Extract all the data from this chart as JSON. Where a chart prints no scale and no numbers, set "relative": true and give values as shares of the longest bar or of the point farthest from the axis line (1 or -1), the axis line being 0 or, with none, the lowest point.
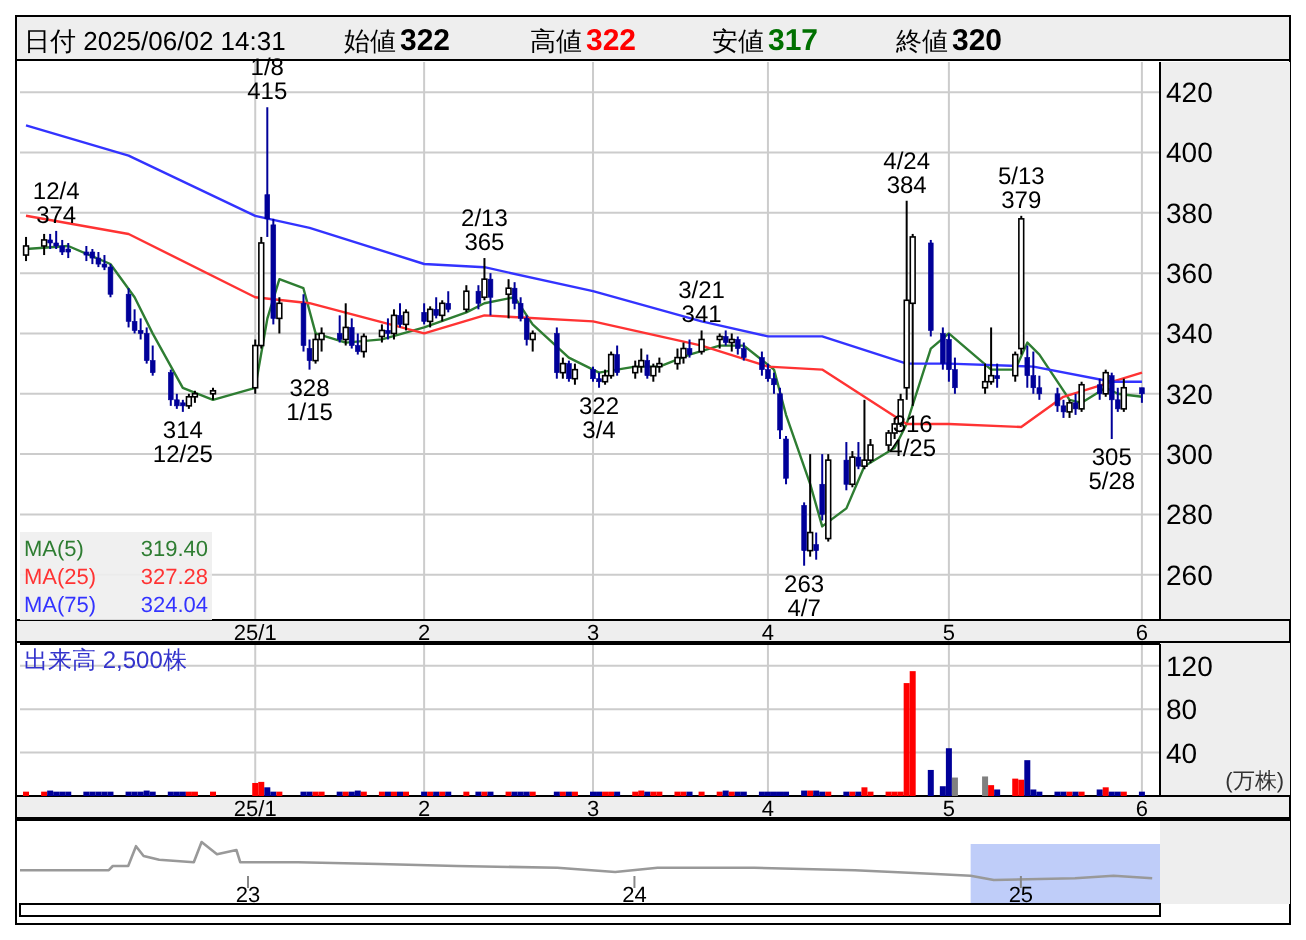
{
  "chart_data": [
    {
      "type": "other",
      "annotations": [
        "日付 2025/06/02 14:31",
        "始値",
        "322",
        "高値",
        "322",
        "安値",
        "317",
        "終値",
        "320"
      ],
      "colors": [
        "#000000",
        "#000000",
        "#000000",
        "#000000",
        "#ff0000",
        "#000000",
        "#007000",
        "#000000",
        "#000000"
      ]
    },
    {
      "type": "candlestick",
      "grid": true,
      "legend": "bottom left",
      "colors": [
        "#ffffff",
        "#ffffff",
        "#000099",
        "#000099",
        "#000099",
        "#000099",
        "#000099",
        "#000099",
        "#000099",
        "#000099",
        "#000099",
        "#000099",
        "#000099",
        "#000099",
        "#000099",
        "#000099",
        "#000099",
        "#000099",
        "#000099",
        "#ffffff",
        "#ffffff",
        "#ffffff",
        "#ffffff",
        "#ffffff",
        "#000099",
        "#000099",
        "#ffffff",
        "#000099",
        "#000099",
        "#ffffff",
        "#ffffff",
        "#000099",
        "#ffffff",
        "#000099",
        "#000099",
        "#ffffff",
        "#ffffff",
        "#000099",
        "#ffffff",
        "#000099",
        "#ffffff",
        "#000099",
        "#ffffff",
        "#000099",
        "#ffffff",
        "#000099",
        "#ffffff",
        "#000099",
        "#ffffff",
        "#000099",
        "#ffffff",
        "#000099",
        "#000099",
        "#000099",
        "#ffffff",
        "#000099",
        "#ffffff",
        "#000099",
        "#ffffff",
        "#000099",
        "#000099",
        "#ffffff",
        "#ffffff",
        "#000099",
        "#ffffff",
        "#ffffff",
        "#000099",
        "#ffffff",
        "#ffffff",
        "#ffffff",
        "#ffffff",
        "#000099",
        "#ffffff",
        "#ffffff",
        "#000099",
        "#ffffff",
        "#000099",
        "#000099",
        "#000099",
        "#000099",
        "#000099",
        "#000099",
        "#000099",
        "#000099",
        "#ffffff",
        "#000099",
        "#000099",
        "#ffffff",
        "#000099",
        "#ffffff",
        "#000099",
        "#ffffff",
        "#ffffff",
        "#ffffff",
        "#ffffff",
        "#ffffff",
        "#ffffff",
        "#ffffff",
        "#000099",
        "#000099",
        "#000099",
        "#000099",
        "#ffffff",
        "#ffffff",
        "#000099",
        "#ffffff",
        "#ffffff",
        "#000099",
        "#000099",
        "#000099",
        "#000099",
        "#000099",
        "#ffffff",
        "#000099",
        "#ffffff",
        "#000099",
        "#ffffff",
        "#000099",
        "#000099",
        "#ffffff",
        "#000099"
      ],
      "x": [
        "2024-11-29",
        "2024-12-02",
        "2024-12-03",
        "2024-12-04",
        "2024-12-05",
        "2024-12-06",
        "2024-12-09",
        "2024-12-10",
        "2024-12-11",
        "2024-12-12",
        "2024-12-13",
        "2024-12-16",
        "2024-12-17",
        "2024-12-18",
        "2024-12-19",
        "2024-12-20",
        "2024-12-23",
        "2024-12-24",
        "2024-12-25",
        "2024-12-26",
        "2024-12-27",
        "2024-12-30",
        "2025-01-06",
        "2025-01-07",
        "2025-01-08",
        "2025-01-09",
        "2025-01-10",
        "2025-01-14",
        "2025-01-15",
        "2025-01-16",
        "2025-01-17",
        "2025-01-20",
        "2025-01-21",
        "2025-01-22",
        "2025-01-23",
        "2025-01-24",
        "2025-01-27",
        "2025-01-28",
        "2025-01-29",
        "2025-01-30",
        "2025-01-31",
        "2025-02-03",
        "2025-02-04",
        "2025-02-05",
        "2025-02-06",
        "2025-02-07",
        "2025-02-10",
        "2025-02-12",
        "2025-02-13",
        "2025-02-14",
        "2025-02-17",
        "2025-02-18",
        "2025-02-19",
        "2025-02-20",
        "2025-02-21",
        "2025-02-25",
        "2025-02-26",
        "2025-02-27",
        "2025-02-28",
        "2025-03-03",
        "2025-03-04",
        "2025-03-05",
        "2025-03-06",
        "2025-03-07",
        "2025-03-10",
        "2025-03-11",
        "2025-03-12",
        "2025-03-13",
        "2025-03-14",
        "2025-03-17",
        "2025-03-18",
        "2025-03-19",
        "2025-03-21",
        "2025-03-24",
        "2025-03-25",
        "2025-03-26",
        "2025-03-27",
        "2025-03-28",
        "2025-03-31",
        "2025-04-01",
        "2025-04-02",
        "2025-04-03",
        "2025-04-04",
        "2025-04-07",
        "2025-04-08",
        "2025-04-09",
        "2025-04-10",
        "2025-04-11",
        "2025-04-14",
        "2025-04-15",
        "2025-04-16",
        "2025-04-17",
        "2025-04-18",
        "2025-04-21",
        "2025-04-22",
        "2025-04-23",
        "2025-04-24",
        "2025-04-25",
        "2025-04-28",
        "2025-04-30",
        "2025-05-01",
        "2025-05-02",
        "2025-05-07",
        "2025-05-08",
        "2025-05-09",
        "2025-05-12",
        "2025-05-13",
        "2025-05-14",
        "2025-05-15",
        "2025-05-16",
        "2025-05-19",
        "2025-05-20",
        "2025-05-21",
        "2025-05-22",
        "2025-05-23",
        "2025-05-26",
        "2025-05-27",
        "2025-05-28",
        "2025-05-29",
        "2025-05-30",
        "2025-06-02"
      ],
      "ohlc": [
        [
          366,
          372,
          364,
          369
        ],
        [
          369,
          373,
          366,
          371
        ],
        [
          371,
          373,
          368,
          370
        ],
        [
          370,
          374,
          368,
          369
        ],
        [
          369,
          371,
          366,
          367
        ],
        [
          368,
          370,
          365,
          367
        ],
        [
          367,
          369,
          364,
          366
        ],
        [
          367,
          368,
          363,
          365
        ],
        [
          365,
          367,
          362,
          363
        ],
        [
          363,
          366,
          361,
          362
        ],
        [
          362,
          363,
          352,
          353
        ],
        [
          353,
          355,
          342,
          344
        ],
        [
          344,
          348,
          340,
          341
        ],
        [
          341,
          345,
          338,
          340
        ],
        [
          340,
          342,
          330,
          331
        ],
        [
          331,
          336,
          326,
          327
        ],
        [
          327,
          328,
          316,
          318
        ],
        [
          318,
          320,
          315,
          316
        ],
        [
          317,
          318,
          314,
          316
        ],
        [
          316,
          320,
          315,
          319
        ],
        [
          319,
          321,
          317,
          320
        ],
        [
          320,
          322,
          318,
          321
        ],
        [
          322,
          338,
          320,
          336
        ],
        [
          336,
          372,
          335,
          370
        ],
        [
          386,
          415,
          372,
          378
        ],
        [
          376,
          378,
          343,
          345
        ],
        [
          345,
          352,
          340,
          350
        ],
        [
          350,
          353,
          334,
          336
        ],
        [
          335,
          338,
          328,
          331
        ],
        [
          331,
          340,
          330,
          338
        ],
        [
          338,
          342,
          334,
          340
        ],
        [
          340,
          346,
          337,
          338
        ],
        [
          338,
          350,
          336,
          342
        ],
        [
          342,
          345,
          335,
          336
        ],
        [
          336,
          340,
          333,
          334
        ],
        [
          334,
          340,
          332,
          339
        ],
        [
          339,
          343,
          337,
          341
        ],
        [
          341,
          345,
          338,
          340
        ],
        [
          340,
          348,
          338,
          346
        ],
        [
          346,
          350,
          342,
          343
        ],
        [
          343,
          348,
          341,
          347
        ],
        [
          347,
          350,
          343,
          344
        ],
        [
          344,
          349,
          342,
          348
        ],
        [
          348,
          352,
          345,
          346
        ],
        [
          346,
          351,
          344,
          350
        ],
        [
          350,
          354,
          347,
          348
        ],
        [
          348,
          356,
          347,
          354
        ],
        [
          354,
          356,
          348,
          350
        ],
        [
          352,
          365,
          351,
          358
        ],
        [
          358,
          360,
          346,
          352
        ],
        [
          353,
          358,
          345,
          355
        ],
        [
          355,
          357,
          348,
          350
        ],
        [
          350,
          352,
          344,
          345
        ],
        [
          345,
          346,
          336,
          338
        ],
        [
          338,
          341,
          334,
          340
        ],
        [
          340,
          342,
          325,
          327
        ],
        [
          327,
          332,
          325,
          330
        ],
        [
          330,
          331,
          324,
          325
        ],
        [
          325,
          330,
          323,
          328
        ],
        [
          328,
          329,
          324,
          325
        ],
        [
          325,
          327,
          322,
          324
        ],
        [
          324,
          328,
          323,
          326
        ],
        [
          326,
          334,
          325,
          333
        ],
        [
          333,
          336,
          326,
          327
        ],
        [
          327,
          331,
          325,
          329
        ],
        [
          329,
          335,
          327,
          331
        ],
        [
          331,
          333,
          325,
          326
        ],
        [
          326,
          330,
          324,
          329
        ],
        [
          329,
          332,
          327,
          330
        ],
        [
          330,
          335,
          328,
          332
        ],
        [
          332,
          337,
          330,
          335
        ],
        [
          335,
          338,
          332,
          333
        ],
        [
          334,
          341,
          333,
          338
        ],
        [
          338,
          340,
          335,
          339
        ],
        [
          339,
          341,
          336,
          337
        ],
        [
          337,
          340,
          334,
          338
        ],
        [
          338,
          339,
          333,
          335
        ],
        [
          335,
          337,
          331,
          332
        ],
        [
          332,
          334,
          326,
          328
        ],
        [
          328,
          330,
          324,
          325
        ],
        [
          325,
          327,
          320,
          323
        ],
        [
          320,
          322,
          305,
          308
        ],
        [
          305,
          306,
          290,
          292
        ],
        [
          283,
          284,
          263,
          268
        ],
        [
          268,
          300,
          266,
          274
        ],
        [
          270,
          274,
          265,
          268
        ],
        [
          290,
          300,
          278,
          280
        ],
        [
          272,
          300,
          271,
          298
        ],
        [
          298,
          304,
          288,
          290
        ],
        [
          290,
          301,
          289,
          299
        ],
        [
          299,
          304,
          295,
          296
        ],
        [
          296,
          318,
          295,
          298
        ],
        [
          298,
          305,
          297,
          303
        ],
        [
          303,
          308,
          301,
          307
        ],
        [
          307,
          312,
          305,
          310
        ],
        [
          310,
          320,
          309,
          318
        ],
        [
          322,
          384,
          318,
          351
        ],
        [
          350,
          373,
          316,
          372
        ],
        [
          370,
          371,
          339,
          341
        ],
        [
          340,
          342,
          328,
          330
        ],
        [
          338,
          340,
          324,
          328
        ],
        [
          328,
          332,
          320,
          322
        ],
        [
          322,
          330,
          320,
          324
        ],
        [
          324,
          342,
          323,
          326
        ],
        [
          326,
          330,
          322,
          325
        ],
        [
          326,
          334,
          324,
          333
        ],
        [
          335,
          379,
          333,
          378
        ],
        [
          332,
          336,
          322,
          326
        ],
        [
          326,
          334,
          320,
          322
        ],
        [
          322,
          326,
          318,
          320
        ],
        [
          320,
          322,
          314,
          316
        ],
        [
          316,
          318,
          312,
          314
        ],
        [
          314,
          318,
          312,
          317
        ],
        [
          317,
          320,
          313,
          315
        ],
        [
          315,
          324,
          314,
          323
        ],
        [
          323,
          325,
          318,
          320
        ],
        [
          320,
          328,
          319,
          327
        ],
        [
          326,
          327,
          305,
          318
        ],
        [
          318,
          322,
          314,
          315
        ],
        [
          315,
          325,
          314,
          322
        ],
        [
          322,
          322,
          317,
          320
        ]
      ],
      "series": [
        {
          "type": "line",
          "name": "MA(5)",
          "color": "#2e7d32",
          "x": [
            "2024-11-29",
            "2024-12-06",
            "2024-12-13",
            "2024-12-17",
            "2024-12-20",
            "2024-12-25",
            "2024-12-30",
            "2025-01-06",
            "2025-01-08",
            "2025-01-10",
            "2025-01-14",
            "2025-01-16",
            "2025-01-21",
            "2025-01-27",
            "2025-02-03",
            "2025-02-10",
            "2025-02-13",
            "2025-02-18",
            "2025-02-21",
            "2025-02-27",
            "2025-03-04",
            "2025-03-10",
            "2025-03-14",
            "2025-03-19",
            "2025-03-24",
            "2025-03-28",
            "2025-04-02",
            "2025-04-04",
            "2025-04-08",
            "2025-04-10",
            "2025-04-14",
            "2025-04-17",
            "2025-04-22",
            "2025-04-24",
            "2025-04-28",
            "2025-05-01",
            "2025-05-08",
            "2025-05-12",
            "2025-05-14",
            "2025-05-16",
            "2025-05-21",
            "2025-05-23",
            "2025-05-27",
            "2025-05-29",
            "2025-06-02"
          ],
          "values": [
            368,
            369,
            363,
            352,
            340,
            322,
            318,
            322,
            345,
            358,
            355,
            340,
            337,
            338,
            342,
            347,
            350,
            352,
            343,
            332,
            327,
            329,
            329,
            333,
            336,
            336,
            328,
            313,
            290,
            276,
            282,
            296,
            302,
            310,
            335,
            340,
            328,
            328,
            337,
            333,
            318,
            317,
            322,
            320,
            319
          ]
        },
        {
          "type": "line",
          "name": "MA(25)",
          "color": "#ff3333",
          "x": [
            "2024-11-29",
            "2024-12-16",
            "2025-01-06",
            "2025-01-15",
            "2025-02-03",
            "2025-02-13",
            "2025-03-03",
            "2025-03-21",
            "2025-04-01",
            "2025-04-10",
            "2025-04-24",
            "2025-05-01",
            "2025-05-13",
            "2025-05-20",
            "2025-05-28",
            "2025-06-02"
          ],
          "values": [
            379,
            373,
            352,
            350,
            340,
            346,
            344,
            336,
            329,
            328,
            310,
            310,
            309,
            319,
            324,
            327
          ]
        },
        {
          "type": "line",
          "name": "MA(75)",
          "color": "#3333ff",
          "x": [
            "2024-11-29",
            "2024-12-16",
            "2025-01-06",
            "2025-01-15",
            "2025-02-03",
            "2025-02-13",
            "2025-03-03",
            "2025-03-21",
            "2025-04-01",
            "2025-04-10",
            "2025-04-24",
            "2025-05-01",
            "2025-05-15",
            "2025-05-28",
            "2025-06-02"
          ],
          "values": [
            409,
            399,
            379,
            375,
            363,
            362,
            354,
            344,
            339,
            339,
            330,
            330,
            329,
            324,
            324
          ]
        }
      ],
      "xlim": [
        "2024-11-28",
        "2025-06-05"
      ],
      "ylim": [
        245,
        430
      ],
      "yticks": [
        260,
        280,
        300,
        320,
        340,
        360,
        380,
        400,
        420
      ],
      "xticks": [
        {
          "value": "2025-01-06",
          "label": "25/1"
        },
        {
          "value": "2025-02-03",
          "label": "2"
        },
        {
          "value": "2025-03-03",
          "label": "3"
        },
        {
          "value": "2025-04-01",
          "label": "4"
        },
        {
          "value": "2025-05-01",
          "label": "5"
        },
        {
          "value": "2025-06-02",
          "label": "6"
        }
      ],
      "annotations": [
        {
          "text": "12/4\n374",
          "x": "2024-12-04",
          "y": 374
        },
        {
          "text": "314\n12/25",
          "x": "2024-12-25",
          "y": 314
        },
        {
          "text": "1/8\n415",
          "x": "2025-01-08",
          "y": 415
        },
        {
          "text": "328\n1/15",
          "x": "2025-01-15",
          "y": 328
        },
        {
          "text": "2/13\n365",
          "x": "2025-02-13",
          "y": 365
        },
        {
          "text": "322\n3/4",
          "x": "2025-03-04",
          "y": 322
        },
        {
          "text": "3/21\n341",
          "x": "2025-03-21",
          "y": 341
        },
        {
          "text": "263\n4/7",
          "x": "2025-04-07",
          "y": 263
        },
        {
          "text": "4/24\n384",
          "x": "2025-04-24",
          "y": 384
        },
        {
          "text": "316\n4/25",
          "x": "2025-04-25",
          "y": 316
        },
        {
          "text": "5/13\n379",
          "x": "2025-05-13",
          "y": 379
        },
        {
          "text": "305\n5/28",
          "x": "2025-05-28",
          "y": 305
        },
        "319.40",
        "327.28",
        "324.04"
      ]
    },
    {
      "type": "bar",
      "title": "出来高  2,500株",
      "ylabel": "(万株)",
      "grid": true,
      "x": [
        "2024-11-29",
        "2024-12-02",
        "2024-12-03",
        "2024-12-04",
        "2024-12-05",
        "2024-12-06",
        "2024-12-09",
        "2024-12-10",
        "2024-12-11",
        "2024-12-12",
        "2024-12-13",
        "2024-12-16",
        "2024-12-17",
        "2024-12-18",
        "2024-12-19",
        "2024-12-20",
        "2024-12-23",
        "2024-12-24",
        "2024-12-25",
        "2024-12-26",
        "2024-12-27",
        "2024-12-30",
        "2025-01-06",
        "2025-01-07",
        "2025-01-08",
        "2025-01-09",
        "2025-01-10",
        "2025-01-14",
        "2025-01-15",
        "2025-01-16",
        "2025-01-17",
        "2025-01-20",
        "2025-01-21",
        "2025-01-22",
        "2025-01-23",
        "2025-01-24",
        "2025-01-27",
        "2025-01-28",
        "2025-01-29",
        "2025-01-30",
        "2025-01-31",
        "2025-02-03",
        "2025-02-04",
        "2025-02-05",
        "2025-02-06",
        "2025-02-07",
        "2025-02-10",
        "2025-02-12",
        "2025-02-13",
        "2025-02-14",
        "2025-02-17",
        "2025-02-18",
        "2025-02-19",
        "2025-02-20",
        "2025-02-21",
        "2025-02-25",
        "2025-02-26",
        "2025-02-27",
        "2025-02-28",
        "2025-03-03",
        "2025-03-04",
        "2025-03-05",
        "2025-03-06",
        "2025-03-07",
        "2025-03-10",
        "2025-03-11",
        "2025-03-12",
        "2025-03-13",
        "2025-03-14",
        "2025-03-17",
        "2025-03-18",
        "2025-03-19",
        "2025-03-21",
        "2025-03-24",
        "2025-03-25",
        "2025-03-26",
        "2025-03-27",
        "2025-03-28",
        "2025-03-31",
        "2025-04-01",
        "2025-04-02",
        "2025-04-03",
        "2025-04-04",
        "2025-04-07",
        "2025-04-08",
        "2025-04-09",
        "2025-04-10",
        "2025-04-11",
        "2025-04-14",
        "2025-04-15",
        "2025-04-16",
        "2025-04-17",
        "2025-04-18",
        "2025-04-21",
        "2025-04-22",
        "2025-04-23",
        "2025-04-24",
        "2025-04-25",
        "2025-04-28",
        "2025-04-30",
        "2025-05-01",
        "2025-05-02",
        "2025-05-07",
        "2025-05-08",
        "2025-05-09",
        "2025-05-12",
        "2025-05-13",
        "2025-05-14",
        "2025-05-15",
        "2025-05-16",
        "2025-05-19",
        "2025-05-20",
        "2025-05-21",
        "2025-05-22",
        "2025-05-23",
        "2025-05-26",
        "2025-05-27",
        "2025-05-28",
        "2025-05-29",
        "2025-05-30",
        "2025-06-02"
      ],
      "values": [
        4,
        4,
        5,
        4,
        4,
        4,
        4,
        4,
        4,
        4,
        4,
        4,
        4,
        4,
        5,
        4,
        4,
        4,
        4,
        4,
        4,
        4,
        12,
        13,
        8,
        4,
        4,
        4,
        4,
        4,
        4,
        4,
        4,
        4,
        5,
        4,
        4,
        4,
        4,
        4,
        4,
        4,
        4,
        4,
        4,
        4,
        4,
        4,
        4,
        4,
        4,
        4,
        4,
        4,
        4,
        4,
        4,
        4,
        4,
        4,
        4,
        4,
        4,
        4,
        4,
        5,
        4,
        4,
        4,
        4,
        4,
        4,
        4,
        4,
        5,
        4,
        4,
        4,
        4,
        4,
        4,
        4,
        4,
        5,
        5,
        5,
        4,
        4,
        4,
        4,
        4,
        8,
        4,
        4,
        4,
        4,
        104,
        115,
        24,
        9,
        44,
        17,
        18,
        10,
        6,
        16,
        15,
        33,
        6,
        4,
        4,
        4,
        4,
        4,
        4,
        6,
        8,
        4,
        4,
        4,
        4
      ],
      "colors": [
        "#ff0000",
        "#ff0000",
        "#000099",
        "#000099",
        "#000099",
        "#000099",
        "#000099",
        "#000099",
        "#000099",
        "#000099",
        "#000099",
        "#000099",
        "#000099",
        "#000099",
        "#000099",
        "#000099",
        "#000099",
        "#000099",
        "#000099",
        "#ff0000",
        "#ff0000",
        "#ff0000",
        "#ff0000",
        "#ff0000",
        "#000099",
        "#000099",
        "#ff0000",
        "#000099",
        "#000099",
        "#ff0000",
        "#ff0000",
        "#000099",
        "#ff0000",
        "#000099",
        "#000099",
        "#ff0000",
        "#ff0000",
        "#000099",
        "#ff0000",
        "#000099",
        "#ff0000",
        "#000099",
        "#ff0000",
        "#000099",
        "#ff0000",
        "#000099",
        "#ff0000",
        "#000099",
        "#ff0000",
        "#000099",
        "#ff0000",
        "#000099",
        "#000099",
        "#000099",
        "#ff0000",
        "#000099",
        "#ff0000",
        "#000099",
        "#ff0000",
        "#000099",
        "#000099",
        "#ff0000",
        "#ff0000",
        "#000099",
        "#ff0000",
        "#ff0000",
        "#000099",
        "#ff0000",
        "#ff0000",
        "#ff0000",
        "#ff0000",
        "#000099",
        "#ff0000",
        "#ff0000",
        "#000099",
        "#ff0000",
        "#000099",
        "#000099",
        "#000099",
        "#000099",
        "#000099",
        "#000099",
        "#000099",
        "#000099",
        "#ff0000",
        "#000099",
        "#000099",
        "#ff0000",
        "#000099",
        "#ff0000",
        "#000099",
        "#ff0000",
        "#ff0000",
        "#ff0000",
        "#ff0000",
        "#ff0000",
        "#ff0000",
        "#ff0000",
        "#000099",
        "#000099",
        "#000099",
        "#808080",
        "#808080",
        "#ff0000",
        "#000099",
        "#ff0000",
        "#ff0000",
        "#000099",
        "#000099",
        "#000099",
        "#000099",
        "#000099",
        "#ff0000",
        "#000099",
        "#ff0000",
        "#000099",
        "#ff0000",
        "#000099",
        "#000099",
        "#ff0000",
        "#000099"
      ],
      "xlim": [
        "2024-11-28",
        "2025-06-05"
      ],
      "ylim": [
        0,
        140
      ],
      "yticks": [
        40,
        80,
        120
      ],
      "xticks": [
        {
          "value": "2025-01-06",
          "label": "25/1"
        },
        {
          "value": "2025-02-03",
          "label": "2"
        },
        {
          "value": "2025-03-03",
          "label": "3"
        },
        {
          "value": "2025-04-01",
          "label": "4"
        },
        {
          "value": "2025-05-01",
          "label": "5"
        },
        {
          "value": "2025-06-02",
          "label": "6"
        }
      ]
    },
    {
      "type": "line",
      "relative": true,
      "tick_labels": "x",
      "series": [
        {
          "color": "#999999",
          "x": [
            2022.41,
            2022.64,
            2022.65,
            2022.69,
            2022.71,
            2022.73,
            2022.77,
            2022.86,
            2022.88,
            2022.92,
            2022.97,
            2022.98,
            2023.13,
            2023.34,
            2023.54,
            2023.8,
            2023.95,
            2024.06,
            2024.31,
            2024.57,
            2024.78,
            2024.87,
            2024.93,
            2025.14,
            2025.24,
            2025.34
          ],
          "values": [
            0.26,
            0.26,
            0.37,
            0.37,
            0.89,
            0.63,
            0.53,
            0.47,
            1,
            0.68,
            0.79,
            0.47,
            0.47,
            0.42,
            0.37,
            0.32,
            0.21,
            0.32,
            0.32,
            0.26,
            0.16,
            0.11,
            0,
            0.05,
            0.11,
            0.05
          ]
        }
      ],
      "xlim": [
        2022.41,
        2025.36
      ],
      "xticks": [
        {
          "value": 2023,
          "label": "23"
        },
        {
          "value": 2024,
          "label": "24"
        },
        {
          "value": 2025,
          "label": "25"
        }
      ],
      "bands": [
        {
          "axis": "x",
          "from": 2024.87,
          "to": 2025.36,
          "color": "#b8c8f8"
        }
      ]
    }
  ]
}
